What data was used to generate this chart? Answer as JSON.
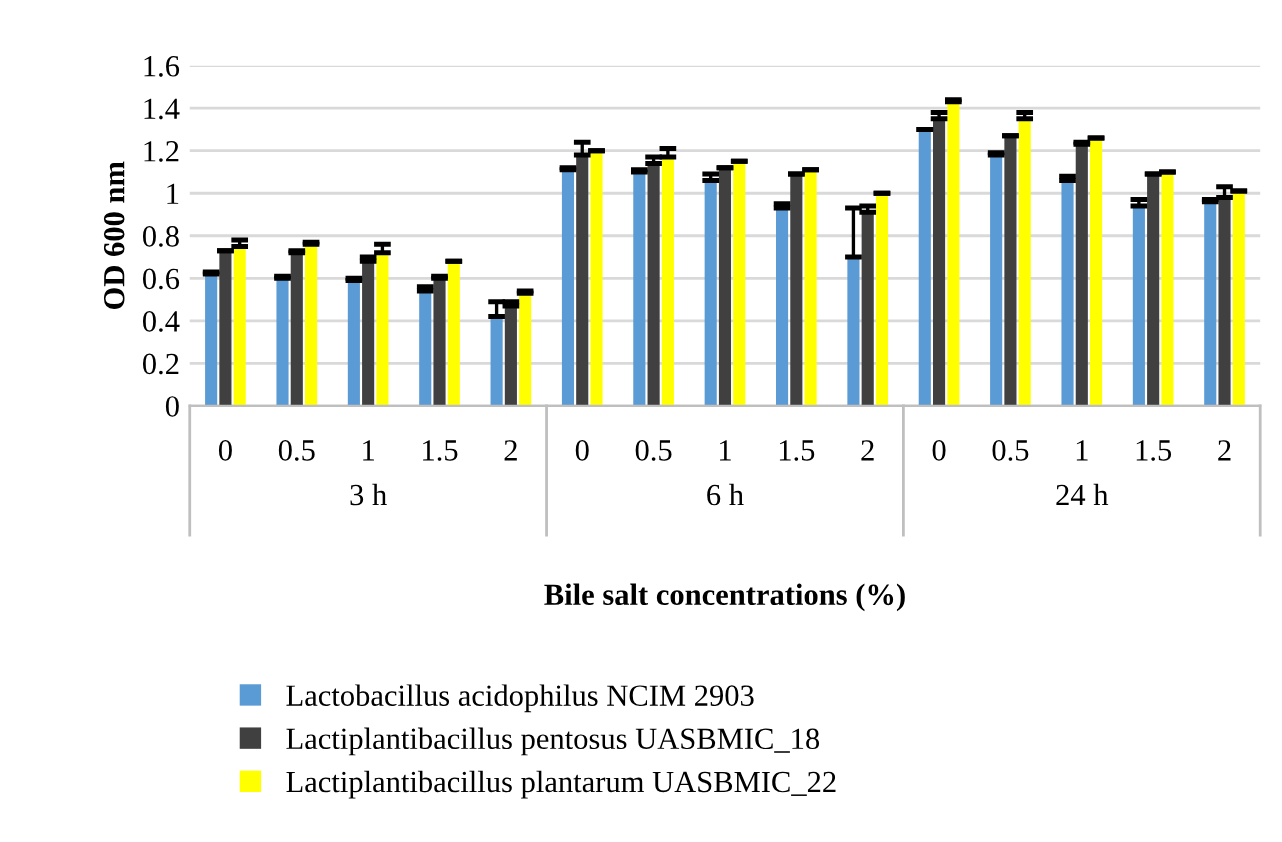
{
  "chart_data": {
    "type": "bar",
    "xlabel": "Bile salt concentrations (%)",
    "ylabel": "OD 600 nm",
    "categories": [
      "0",
      "0.5",
      "1",
      "1.5",
      "2",
      "0",
      "0.5",
      "1",
      "1.5",
      "2",
      "0",
      "0.5",
      "1",
      "1.5",
      "2"
    ],
    "annotations": [
      "3 h",
      "6 h",
      "24 h"
    ],
    "series": [
      {
        "name": "Lactobacillus acidophilus NCIM 2903",
        "color": "#5b9bd5",
        "values": [
          0.62,
          0.6,
          0.59,
          0.54,
          0.42,
          1.11,
          1.1,
          1.06,
          0.93,
          0.7,
          1.3,
          1.18,
          1.06,
          0.94,
          0.96
        ],
        "errors": [
          [
            0.62,
            0.63
          ],
          [
            0.6,
            0.61
          ],
          [
            0.59,
            0.6
          ],
          [
            0.54,
            0.56
          ],
          [
            0.42,
            0.49
          ],
          [
            1.11,
            1.12
          ],
          [
            1.1,
            1.11
          ],
          [
            1.06,
            1.09
          ],
          [
            0.93,
            0.95
          ],
          [
            0.7,
            0.93
          ],
          [
            1.3,
            1.3
          ],
          [
            1.18,
            1.19
          ],
          [
            1.06,
            1.08
          ],
          [
            0.94,
            0.97
          ],
          [
            0.96,
            0.97
          ]
        ]
      },
      {
        "name": "Lactiplantibacillus pentosus UASBMIC_18",
        "color": "#404040",
        "values": [
          0.73,
          0.72,
          0.68,
          0.6,
          0.47,
          1.18,
          1.14,
          1.12,
          1.09,
          0.91,
          1.35,
          1.27,
          1.23,
          1.09,
          0.98
        ],
        "errors": [
          [
            0.73,
            0.73
          ],
          [
            0.72,
            0.73
          ],
          [
            0.68,
            0.7
          ],
          [
            0.6,
            0.61
          ],
          [
            0.47,
            0.49
          ],
          [
            1.18,
            1.24
          ],
          [
            1.14,
            1.17
          ],
          [
            1.12,
            1.12
          ],
          [
            1.09,
            1.09
          ],
          [
            0.91,
            0.94
          ],
          [
            1.35,
            1.38
          ],
          [
            1.27,
            1.27
          ],
          [
            1.23,
            1.24
          ],
          [
            1.09,
            1.09
          ],
          [
            0.98,
            1.03
          ]
        ]
      },
      {
        "name": "Lactiplantibacillus plantarum UASBMIC_22",
        "color": "#ffff00",
        "values": [
          0.75,
          0.76,
          0.72,
          0.68,
          0.53,
          1.2,
          1.17,
          1.15,
          1.11,
          1.0,
          1.43,
          1.35,
          1.26,
          1.1,
          1.01
        ],
        "errors": [
          [
            0.75,
            0.78
          ],
          [
            0.76,
            0.77
          ],
          [
            0.72,
            0.76
          ],
          [
            0.68,
            0.68
          ],
          [
            0.53,
            0.54
          ],
          [
            1.2,
            1.2
          ],
          [
            1.17,
            1.21
          ],
          [
            1.15,
            1.15
          ],
          [
            1.11,
            1.11
          ],
          [
            1.0,
            1.0
          ],
          [
            1.43,
            1.44
          ],
          [
            1.35,
            1.38
          ],
          [
            1.26,
            1.26
          ],
          [
            1.1,
            1.1
          ],
          [
            1.01,
            1.01
          ]
        ]
      }
    ],
    "ylim": [
      0,
      1.6
    ],
    "yticks": [
      0,
      0.2,
      0.4,
      0.6,
      0.8,
      1,
      1.2,
      1.4,
      1.6
    ],
    "grid": "y",
    "legend": "bottom"
  }
}
